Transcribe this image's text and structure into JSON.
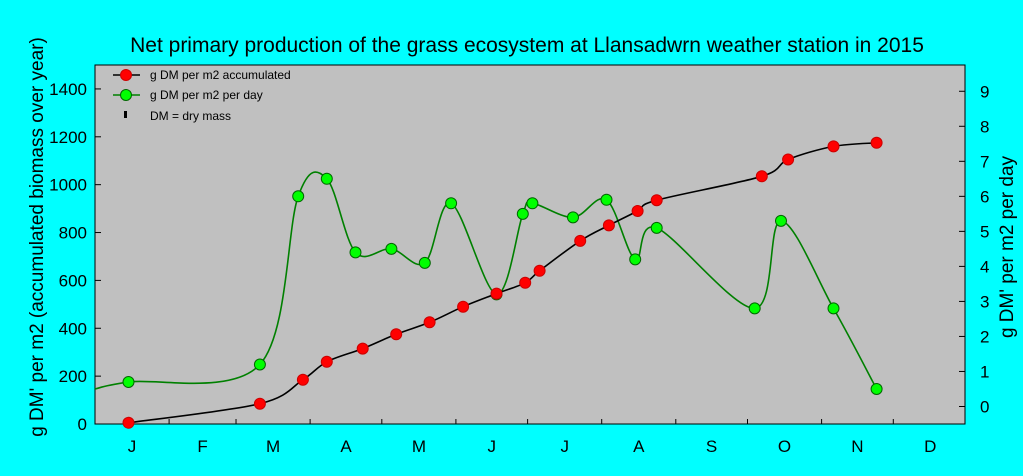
{
  "chart_data": {
    "type": "line",
    "title": "Net primary production of the grass ecosystem at Llansadwrn weather station in 2015",
    "ylabel_left": "g DM' per m2 (accumulated biomass over year)",
    "ylabel_right": "g DM' per m2 per day",
    "month_labels": [
      "J",
      "F",
      "M",
      "A",
      "M",
      "J",
      "J",
      "A",
      "S",
      "O",
      "N",
      "D"
    ],
    "x_range_days": [
      1,
      365
    ],
    "y_left_ticks": [
      "0",
      "200",
      "400",
      "600",
      "800",
      "1000",
      "1200",
      "1400"
    ],
    "y_left_range": [
      0,
      1500
    ],
    "y_right_ticks": [
      "0",
      "1",
      "2",
      "3",
      "4",
      "5",
      "6",
      "7",
      "8",
      "9"
    ],
    "y_right_range": [
      -0.5,
      9.75
    ],
    "colors": {
      "background": "#00ffff",
      "plot_area": "#c0c0c0",
      "accumulated": "#ff0000",
      "accumulated_line": "#000000",
      "per_day": "#00ff00",
      "per_day_line": "#008000"
    },
    "legend": [
      {
        "key": "accumulated",
        "label": "g DM per m2 accumulated"
      },
      {
        "key": "per_day",
        "label": "g DM per m2 per day"
      },
      {
        "key": "note",
        "label": "DM = dry mass"
      }
    ],
    "series": [
      {
        "key": "accumulated",
        "axis": "left",
        "x": [
          15,
          70,
          88,
          98,
          113,
          127,
          141,
          155,
          169,
          181,
          187,
          204,
          216,
          228,
          236,
          280,
          291,
          310,
          328
        ],
        "y": [
          5,
          85,
          185,
          260,
          315,
          375,
          425,
          490,
          545,
          590,
          640,
          765,
          830,
          890,
          935,
          1035,
          1105,
          1160,
          1175
        ]
      },
      {
        "key": "per_day",
        "axis": "left_curve_right",
        "x": [
          15,
          70,
          86,
          98,
          110,
          125,
          139,
          150,
          169,
          180,
          184,
          201,
          215,
          227,
          236,
          277,
          288,
          310,
          328
        ],
        "y": [
          0.7,
          1.2,
          6.0,
          6.5,
          4.4,
          4.5,
          4.1,
          5.8,
          3.2,
          5.5,
          5.8,
          5.4,
          5.9,
          4.2,
          5.1,
          2.8,
          5.3,
          2.8,
          0.5
        ]
      }
    ]
  }
}
